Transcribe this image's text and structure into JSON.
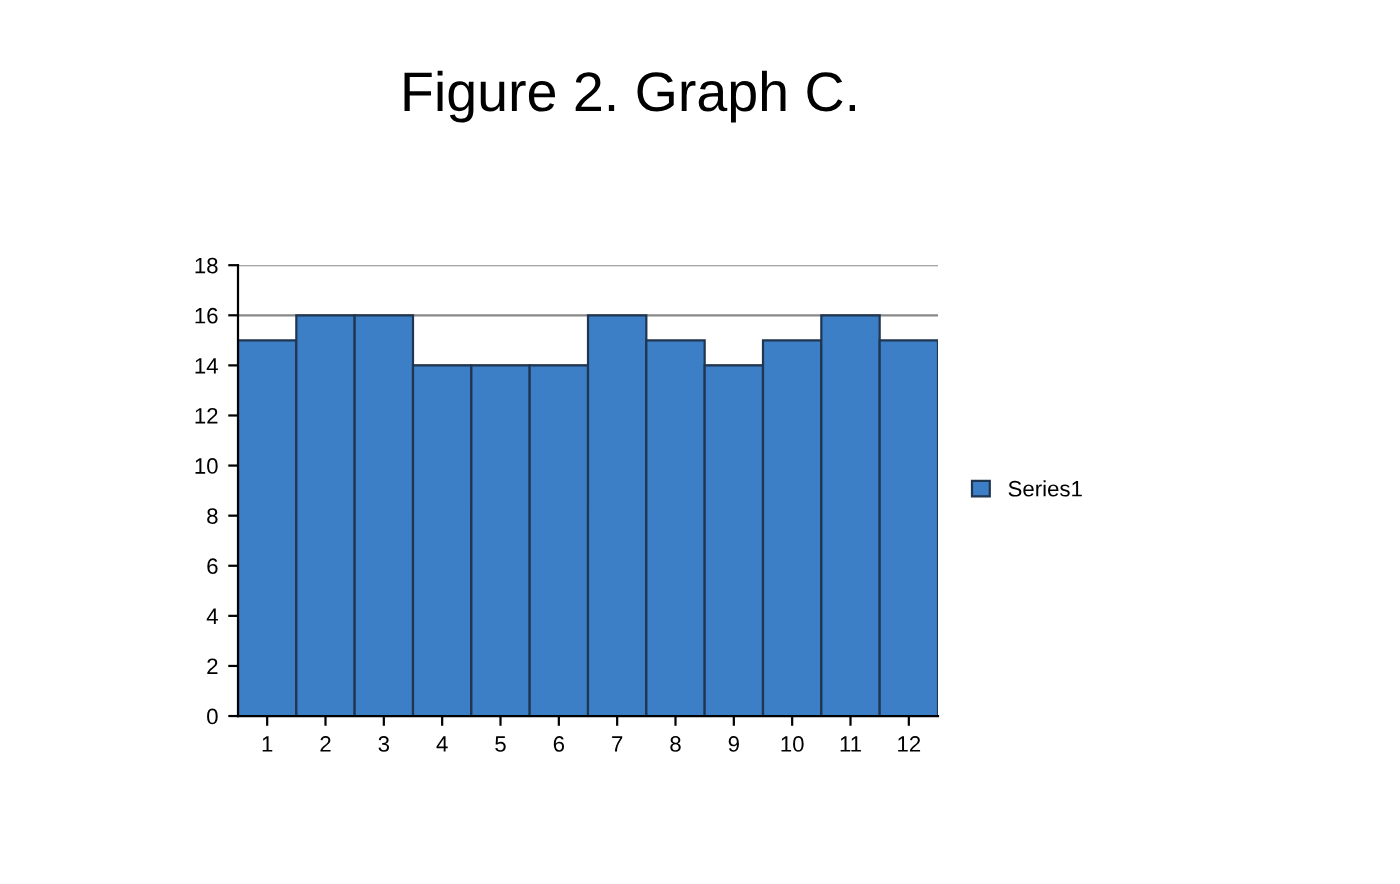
{
  "chart_data": {
    "type": "bar",
    "title": "Figure 2. Graph C.",
    "categories": [
      "1",
      "2",
      "3",
      "4",
      "5",
      "6",
      "7",
      "8",
      "9",
      "10",
      "11",
      "12"
    ],
    "series": [
      {
        "name": "Series1",
        "color": "#3d7fc6",
        "values": [
          15,
          16,
          16,
          14,
          14,
          14,
          16,
          15,
          14,
          15,
          16,
          15
        ]
      }
    ],
    "ylim": [
      0,
      18
    ],
    "yticks": [
      0,
      2,
      4,
      6,
      8,
      10,
      12,
      14,
      16,
      18
    ],
    "grid": "y",
    "legend": "right"
  }
}
